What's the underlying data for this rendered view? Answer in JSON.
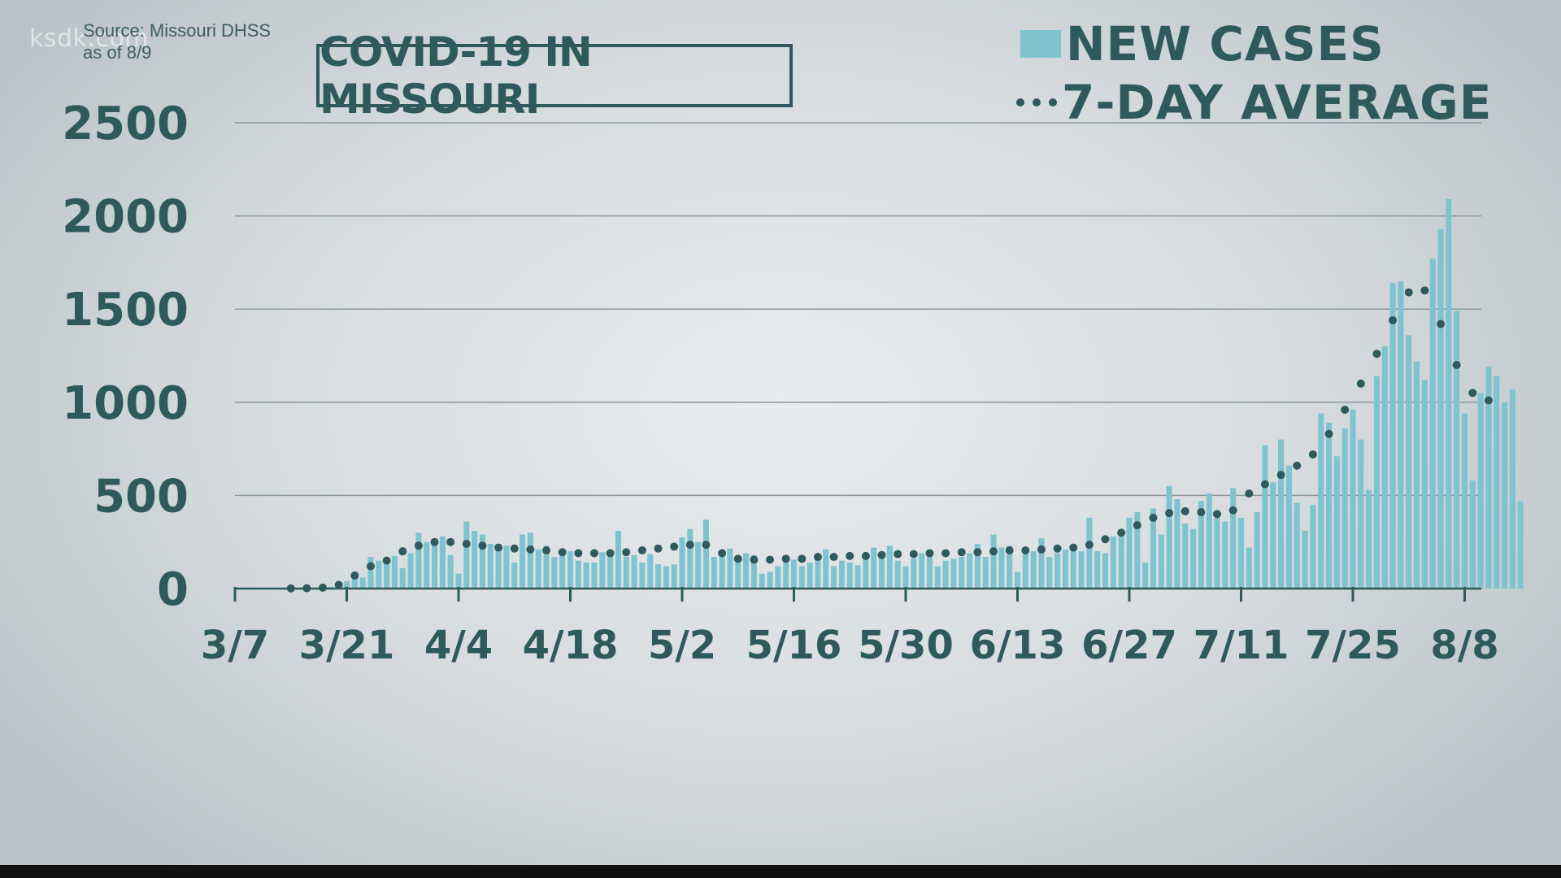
{
  "watermark": "ksdk.com",
  "source_line1": "Source: Missouri DHSS",
  "source_line2": "as of 8/9",
  "title": "COVID-19 IN MISSOURI",
  "legend": {
    "bars_label": "NEW CASES",
    "line_label": "7-DAY AVERAGE"
  },
  "colors": {
    "bar": "#7fc3d0",
    "dots": "#2e5a5d",
    "text": "#2e5a5d",
    "grid": "#8d979b"
  },
  "chart_data": {
    "type": "bar",
    "x_ticks": [
      "3/7",
      "3/21",
      "4/4",
      "4/18",
      "5/2",
      "5/16",
      "5/30",
      "6/13",
      "6/27",
      "7/11",
      "7/25",
      "8/8"
    ],
    "y_ticks": [
      "0",
      "500",
      "1000",
      "1500",
      "2000",
      "2500"
    ],
    "ylim": [
      0,
      2500
    ],
    "xlim": [
      "3/7",
      "8/8"
    ],
    "grid": true,
    "legend_position": "top-right",
    "series": [
      {
        "name": "NEW CASES",
        "kind": "bar",
        "start_date": "3/7",
        "values": [
          0,
          0,
          0,
          0,
          0,
          0,
          0,
          0,
          1,
          2,
          3,
          5,
          10,
          20,
          40,
          90,
          60,
          170,
          150,
          165,
          175,
          110,
          190,
          300,
          250,
          260,
          280,
          180,
          80,
          360,
          310,
          290,
          240,
          220,
          230,
          140,
          290,
          300,
          210,
          230,
          170,
          190,
          200,
          150,
          140,
          140,
          195,
          180,
          310,
          170,
          180,
          140,
          185,
          130,
          120,
          130,
          275,
          320,
          250,
          370,
          170,
          195,
          215,
          150,
          190,
          180,
          80,
          90,
          120,
          140,
          155,
          120,
          140,
          160,
          210,
          120,
          150,
          140,
          125,
          160,
          220,
          190,
          230,
          150,
          120,
          160,
          190,
          180,
          120,
          150,
          160,
          170,
          190,
          240,
          170,
          290,
          220,
          230,
          90,
          190,
          200,
          270,
          170,
          190,
          210,
          230,
          200,
          380,
          200,
          190,
          280,
          280,
          380,
          410,
          140,
          430,
          290,
          550,
          480,
          350,
          320,
          470,
          510,
          380,
          360,
          540,
          380,
          220,
          410,
          770,
          570,
          800,
          660,
          460,
          310,
          450,
          940,
          890,
          710,
          860,
          960,
          800,
          530,
          1140,
          1300,
          1640,
          1650,
          1360,
          1220,
          1120,
          1770,
          1930,
          2090,
          1490,
          940,
          580,
          1050,
          1190,
          1140,
          1000,
          1070,
          470
        ]
      },
      {
        "name": "7-DAY AVERAGE",
        "kind": "dotted-line",
        "start_date": "3/7",
        "values": [
          null,
          null,
          null,
          null,
          null,
          null,
          null,
          1,
          1,
          2,
          3,
          5,
          8,
          20,
          40,
          70,
          100,
          120,
          130,
          150,
          180,
          200,
          210,
          230,
          245,
          250,
          250,
          250,
          245,
          240,
          235,
          230,
          225,
          220,
          220,
          215,
          215,
          210,
          205,
          205,
          200,
          195,
          195,
          190,
          190,
          190,
          190,
          190,
          190,
          195,
          200,
          205,
          210,
          215,
          220,
          225,
          230,
          235,
          240,
          235,
          215,
          190,
          170,
          160,
          155,
          155,
          155,
          155,
          155,
          160,
          160,
          160,
          165,
          170,
          170,
          170,
          175,
          175,
          175,
          175,
          180,
          180,
          185,
          185,
          185,
          185,
          185,
          190,
          190,
          190,
          195,
          195,
          195,
          195,
          200,
          200,
          200,
          205,
          205,
          205,
          210,
          210,
          210,
          215,
          215,
          220,
          225,
          235,
          250,
          265,
          280,
          300,
          320,
          340,
          360,
          380,
          395,
          405,
          410,
          415,
          415,
          410,
          405,
          400,
          395,
          420,
          460,
          510,
          550,
          560,
          580,
          610,
          630,
          660,
          690,
          720,
          770,
          830,
          900,
          960,
          1020,
          1100,
          1180,
          1260,
          1360,
          1440,
          1520,
          1590,
          1620,
          1600,
          1520,
          1420,
          1320,
          1200,
          1100,
          1050,
          1030,
          1010
        ]
      }
    ]
  }
}
